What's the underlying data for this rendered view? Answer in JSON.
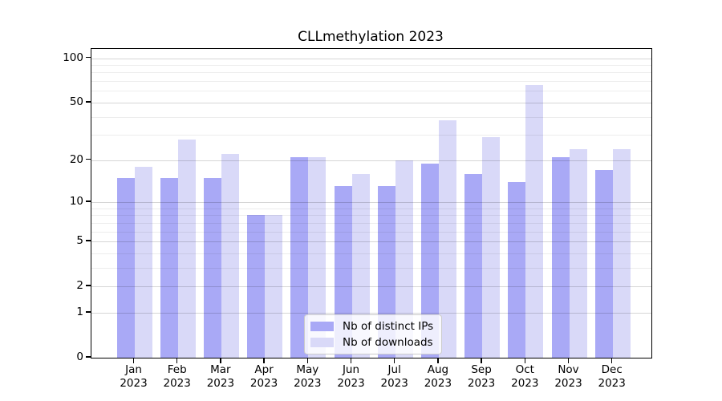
{
  "chart_data": {
    "type": "bar",
    "title": "CLLmethylation 2023",
    "y_scale": "log1p",
    "categories": [
      "Jan",
      "Feb",
      "Mar",
      "Apr",
      "May",
      "Jun",
      "Jul",
      "Aug",
      "Sep",
      "Oct",
      "Nov",
      "Dec"
    ],
    "year_label": "2023",
    "series": [
      {
        "name": "Nb of distinct IPs",
        "color": "#a9a9f6",
        "values": [
          15,
          15,
          15,
          8,
          21,
          13,
          13,
          19,
          16,
          14,
          21,
          17
        ]
      },
      {
        "name": "Nb of downloads",
        "color": "#d9d9f8",
        "values": [
          18,
          28,
          22,
          8,
          21,
          16,
          20,
          38,
          29,
          66,
          24,
          24
        ]
      }
    ],
    "y_ticks": [
      0,
      1,
      2,
      5,
      10,
      20,
      50,
      100
    ],
    "y_minor_gridlines": [
      3,
      4,
      6,
      7,
      8,
      9,
      30,
      40,
      60,
      70,
      80,
      90
    ],
    "ylim": [
      0,
      114
    ],
    "grid": true,
    "legend_position": "lower center inside"
  },
  "colors": {
    "bar_distinct_ips": "#a9a9f6",
    "bar_downloads": "#d9d9f8",
    "axis": "#000000",
    "grid_major": "rgba(0,0,0,0.16)",
    "grid_minor": "rgba(0,0,0,0.07)",
    "legend_background": "rgba(255,255,255,0.8)"
  }
}
